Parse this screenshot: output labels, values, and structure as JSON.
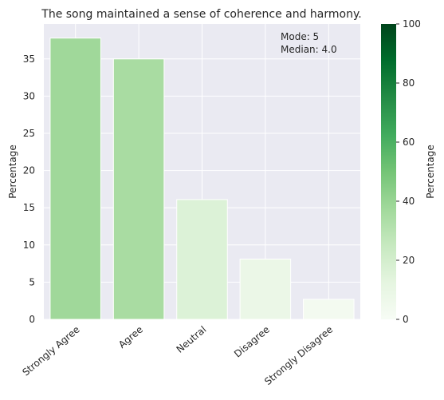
{
  "chart_data": {
    "type": "bar",
    "title": "The song maintained a sense of coherence and harmony.",
    "xlabel": "",
    "ylabel": "Percentage",
    "categories": [
      "Strongly Agree",
      "Agree",
      "Neutral",
      "Disagree",
      "Strongly Disagree"
    ],
    "values": [
      37.8,
      35.0,
      16.1,
      8.1,
      2.7
    ],
    "ylim": [
      0,
      39.7
    ],
    "yticks": [
      0,
      5,
      10,
      15,
      20,
      25,
      30,
      35
    ],
    "grid": true,
    "annotation_lines": [
      "Mode: 5",
      "Median: 4.0"
    ],
    "colorbar": {
      "label": "Percentage",
      "range": [
        0,
        100
      ],
      "ticks": [
        0,
        20,
        40,
        60,
        80,
        100
      ],
      "colormap": "Greens",
      "colors": [
        "#f7fcf5",
        "#e5f5e0",
        "#c7e9c0",
        "#a1d99b",
        "#74c476",
        "#41ab5d",
        "#238b45",
        "#006d2c",
        "#00441b"
      ]
    },
    "colors": {
      "plot_background": "#eaeaf2",
      "grid": "#ffffff",
      "bar_edge": "#ffffff"
    }
  }
}
